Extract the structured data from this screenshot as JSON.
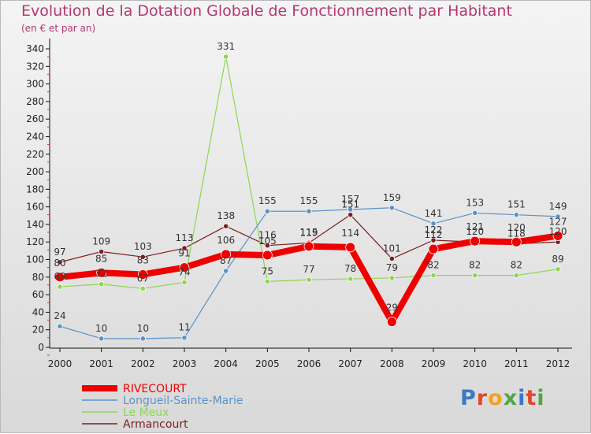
{
  "header": {
    "title": "Evolution de la Dotation Globale de Fonctionnement par Habitant",
    "subtitle": "(en € et par an)"
  },
  "brand": {
    "text": "Proxiti"
  },
  "chart_data": {
    "type": "line",
    "title": "Evolution de la Dotation Globale de Fonctionnement par Habitant",
    "subtitle": "(en € et par an)",
    "xlabel": "",
    "ylabel": "",
    "ylim": [
      0,
      340
    ],
    "yticks": [
      0,
      20,
      40,
      60,
      80,
      100,
      120,
      140,
      160,
      180,
      200,
      220,
      240,
      260,
      280,
      300,
      320,
      340
    ],
    "categories": [
      "2000",
      "2001",
      "2002",
      "2003",
      "2004",
      "2005",
      "2006",
      "2007",
      "2008",
      "2009",
      "2010",
      "2011",
      "2012"
    ],
    "grid": false,
    "legend_position": "bottom-left",
    "series": [
      {
        "name": "Armancourt",
        "color": "#7b1f1f",
        "values": [
          97,
          109,
          103,
          113,
          138,
          116,
          119,
          151,
          101,
          122,
          120,
          118,
          120
        ]
      },
      {
        "name": "Le Meux",
        "color": "#8fd650",
        "values": [
          69,
          72,
          67,
          74,
          331,
          75,
          77,
          78,
          79,
          82,
          82,
          82,
          89
        ]
      },
      {
        "name": "Longueil-Sainte-Marie",
        "color": "#5b93c7",
        "values": [
          24,
          10,
          10,
          11,
          87,
          155,
          155,
          157,
          159,
          141,
          153,
          151,
          149
        ]
      },
      {
        "name": "RIVECOURT",
        "color": "#ee0000",
        "values": [
          80,
          85,
          83,
          91,
          106,
          105,
          115,
          114,
          29,
          112,
          121,
          120,
          127
        ]
      }
    ],
    "legend_order": [
      "RIVECOURT",
      "Longueil-Sainte-Marie",
      "Le Meux",
      "Armancourt"
    ]
  }
}
